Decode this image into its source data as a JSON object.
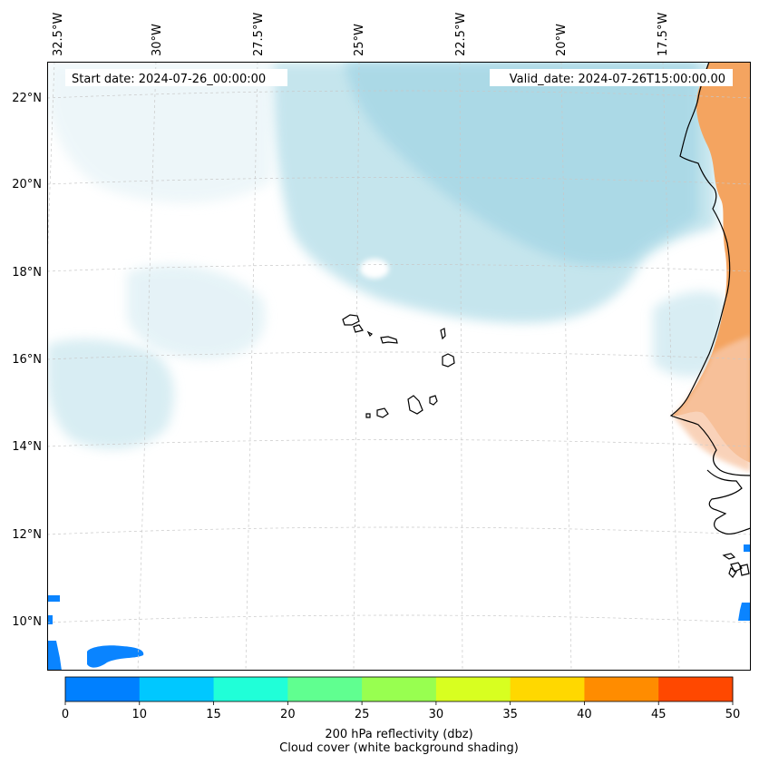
{
  "header": {
    "start_date": "Start date: 2024-07-26_00:00:00",
    "valid_date": "Valid_date: 2024-07-26T15:00:00.00"
  },
  "axes": {
    "lon_labels": [
      "32.5°W",
      "30°W",
      "27.5°W",
      "25°W",
      "22.5°W",
      "20°W",
      "17.5°W"
    ],
    "lat_labels": [
      "22°N",
      "20°N",
      "18°N",
      "16°N",
      "14°N",
      "12°N",
      "10°N"
    ]
  },
  "colorbar": {
    "ticks": [
      "0",
      "10",
      "15",
      "20",
      "25",
      "30",
      "35",
      "40",
      "45",
      "50"
    ],
    "colors": [
      "#0080ff",
      "#00c8ff",
      "#20ffd8",
      "#60ff90",
      "#98ff50",
      "#d8ff20",
      "#ffd800",
      "#ff8c00",
      "#ff4800"
    ],
    "label_line1": "200 hPa reflectivity (dbz)",
    "label_line2": "Cloud cover (white background shading)"
  },
  "map_colors": {
    "cloud": "#b0dce8",
    "land_shade": "#f4a460",
    "reflectivity_low": "#0a84ff",
    "coastline": "#000000"
  }
}
